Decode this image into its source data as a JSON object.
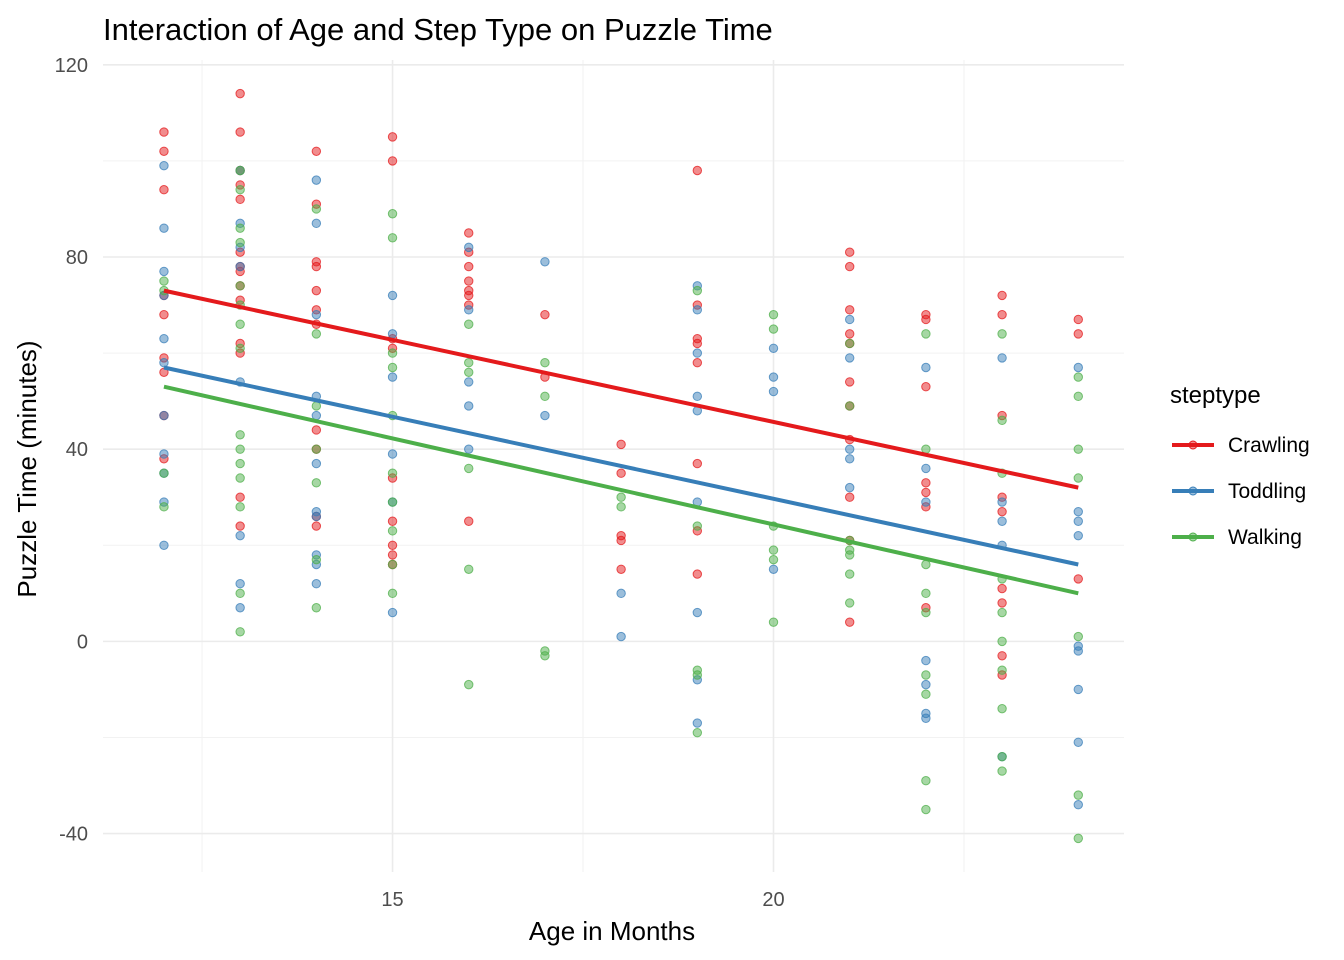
{
  "chart_data": {
    "type": "scatter",
    "title": "Interaction of Age and Step Type on Puzzle Time",
    "xlabel": "Age in Months",
    "ylabel": "Puzzle Time (minutes)",
    "xlim": [
      11.2,
      24.6
    ],
    "ylim": [
      -48,
      121
    ],
    "x_ticks": [
      15,
      20
    ],
    "x_tick_labels": [
      "15",
      "20"
    ],
    "y_ticks": [
      -40,
      0,
      40,
      80,
      120
    ],
    "y_tick_labels": [
      "-40",
      "0",
      "40",
      "80",
      "120"
    ],
    "grid": true,
    "legend": {
      "title": "steptype",
      "position": "right"
    },
    "series": [
      {
        "name": "Crawling",
        "color": "#e41a1c",
        "trend": {
          "x": [
            12,
            24
          ],
          "y": [
            73,
            32
          ]
        },
        "points": [
          [
            12,
            106
          ],
          [
            12,
            102
          ],
          [
            12,
            94
          ],
          [
            12,
            72
          ],
          [
            12,
            68
          ],
          [
            12,
            59
          ],
          [
            12,
            56
          ],
          [
            12,
            47
          ],
          [
            12,
            38
          ],
          [
            13,
            114
          ],
          [
            13,
            106
          ],
          [
            13,
            98
          ],
          [
            13,
            95
          ],
          [
            13,
            92
          ],
          [
            13,
            81
          ],
          [
            13,
            78
          ],
          [
            13,
            77
          ],
          [
            13,
            74
          ],
          [
            13,
            71
          ],
          [
            13,
            62
          ],
          [
            13,
            60
          ],
          [
            13,
            30
          ],
          [
            13,
            24
          ],
          [
            14,
            102
          ],
          [
            14,
            91
          ],
          [
            14,
            79
          ],
          [
            14,
            78
          ],
          [
            14,
            73
          ],
          [
            14,
            69
          ],
          [
            14,
            66
          ],
          [
            14,
            44
          ],
          [
            14,
            40
          ],
          [
            14,
            26
          ],
          [
            14,
            24
          ],
          [
            15,
            105
          ],
          [
            15,
            100
          ],
          [
            15,
            63
          ],
          [
            15,
            61
          ],
          [
            15,
            34
          ],
          [
            15,
            25
          ],
          [
            15,
            20
          ],
          [
            15,
            18
          ],
          [
            15,
            16
          ],
          [
            16,
            85
          ],
          [
            16,
            81
          ],
          [
            16,
            78
          ],
          [
            16,
            75
          ],
          [
            16,
            73
          ],
          [
            16,
            72
          ],
          [
            16,
            70
          ],
          [
            16,
            25
          ],
          [
            17,
            68
          ],
          [
            17,
            55
          ],
          [
            18,
            41
          ],
          [
            18,
            35
          ],
          [
            18,
            22
          ],
          [
            18,
            21
          ],
          [
            18,
            15
          ],
          [
            19,
            98
          ],
          [
            19,
            70
          ],
          [
            19,
            63
          ],
          [
            19,
            62
          ],
          [
            19,
            58
          ],
          [
            19,
            37
          ],
          [
            19,
            23
          ],
          [
            19,
            14
          ],
          [
            21,
            81
          ],
          [
            21,
            78
          ],
          [
            21,
            69
          ],
          [
            21,
            64
          ],
          [
            21,
            62
          ],
          [
            21,
            54
          ],
          [
            21,
            49
          ],
          [
            21,
            42
          ],
          [
            21,
            30
          ],
          [
            21,
            21
          ],
          [
            21,
            4
          ],
          [
            22,
            68
          ],
          [
            22,
            67
          ],
          [
            22,
            53
          ],
          [
            22,
            33
          ],
          [
            22,
            31
          ],
          [
            22,
            28
          ],
          [
            22,
            7
          ],
          [
            23,
            72
          ],
          [
            23,
            68
          ],
          [
            23,
            47
          ],
          [
            23,
            30
          ],
          [
            23,
            27
          ],
          [
            23,
            11
          ],
          [
            23,
            8
          ],
          [
            23,
            -3
          ],
          [
            23,
            -7
          ],
          [
            24,
            67
          ],
          [
            24,
            64
          ],
          [
            24,
            13
          ]
        ]
      },
      {
        "name": "Toddling",
        "color": "#377eb8",
        "trend": {
          "x": [
            12,
            24
          ],
          "y": [
            57,
            16
          ]
        },
        "points": [
          [
            12,
            99
          ],
          [
            12,
            86
          ],
          [
            12,
            77
          ],
          [
            12,
            72
          ],
          [
            12,
            63
          ],
          [
            12,
            58
          ],
          [
            12,
            47
          ],
          [
            12,
            39
          ],
          [
            12,
            35
          ],
          [
            12,
            29
          ],
          [
            12,
            20
          ],
          [
            13,
            98
          ],
          [
            13,
            87
          ],
          [
            13,
            82
          ],
          [
            13,
            78
          ],
          [
            13,
            54
          ],
          [
            13,
            22
          ],
          [
            13,
            12
          ],
          [
            13,
            7
          ],
          [
            14,
            96
          ],
          [
            14,
            87
          ],
          [
            14,
            68
          ],
          [
            14,
            51
          ],
          [
            14,
            47
          ],
          [
            14,
            37
          ],
          [
            14,
            27
          ],
          [
            14,
            26
          ],
          [
            14,
            18
          ],
          [
            14,
            16
          ],
          [
            14,
            12
          ],
          [
            15,
            72
          ],
          [
            15,
            64
          ],
          [
            15,
            55
          ],
          [
            15,
            39
          ],
          [
            15,
            29
          ],
          [
            15,
            6
          ],
          [
            16,
            82
          ],
          [
            16,
            69
          ],
          [
            16,
            54
          ],
          [
            16,
            49
          ],
          [
            16,
            40
          ],
          [
            17,
            79
          ],
          [
            17,
            47
          ],
          [
            18,
            10
          ],
          [
            18,
            1
          ],
          [
            19,
            74
          ],
          [
            19,
            69
          ],
          [
            19,
            60
          ],
          [
            19,
            51
          ],
          [
            19,
            48
          ],
          [
            19,
            29
          ],
          [
            19,
            6
          ],
          [
            19,
            -8
          ],
          [
            19,
            -17
          ],
          [
            20,
            61
          ],
          [
            20,
            55
          ],
          [
            20,
            52
          ],
          [
            20,
            15
          ],
          [
            21,
            67
          ],
          [
            21,
            59
          ],
          [
            21,
            40
          ],
          [
            21,
            38
          ],
          [
            21,
            32
          ],
          [
            22,
            57
          ],
          [
            22,
            36
          ],
          [
            22,
            29
          ],
          [
            22,
            -4
          ],
          [
            22,
            -9
          ],
          [
            22,
            -15
          ],
          [
            22,
            -16
          ],
          [
            23,
            59
          ],
          [
            23,
            29
          ],
          [
            23,
            25
          ],
          [
            23,
            20
          ],
          [
            23,
            -24
          ],
          [
            24,
            57
          ],
          [
            24,
            27
          ],
          [
            24,
            25
          ],
          [
            24,
            22
          ],
          [
            24,
            -1
          ],
          [
            24,
            -2
          ],
          [
            24,
            -10
          ],
          [
            24,
            -21
          ],
          [
            24,
            -34
          ]
        ]
      },
      {
        "name": "Walking",
        "color": "#4daf4a",
        "trend": {
          "x": [
            12,
            24
          ],
          "y": [
            53,
            10
          ]
        },
        "points": [
          [
            12,
            75
          ],
          [
            12,
            73
          ],
          [
            12,
            35
          ],
          [
            12,
            28
          ],
          [
            13,
            98
          ],
          [
            13,
            94
          ],
          [
            13,
            86
          ],
          [
            13,
            83
          ],
          [
            13,
            74
          ],
          [
            13,
            70
          ],
          [
            13,
            66
          ],
          [
            13,
            61
          ],
          [
            13,
            43
          ],
          [
            13,
            40
          ],
          [
            13,
            37
          ],
          [
            13,
            34
          ],
          [
            13,
            28
          ],
          [
            13,
            10
          ],
          [
            13,
            2
          ],
          [
            14,
            90
          ],
          [
            14,
            64
          ],
          [
            14,
            49
          ],
          [
            14,
            40
          ],
          [
            14,
            33
          ],
          [
            14,
            17
          ],
          [
            14,
            7
          ],
          [
            15,
            89
          ],
          [
            15,
            84
          ],
          [
            15,
            60
          ],
          [
            15,
            57
          ],
          [
            15,
            47
          ],
          [
            15,
            35
          ],
          [
            15,
            29
          ],
          [
            15,
            23
          ],
          [
            15,
            16
          ],
          [
            15,
            10
          ],
          [
            16,
            66
          ],
          [
            16,
            58
          ],
          [
            16,
            56
          ],
          [
            16,
            36
          ],
          [
            16,
            15
          ],
          [
            16,
            -9
          ],
          [
            17,
            58
          ],
          [
            17,
            51
          ],
          [
            17,
            -2
          ],
          [
            17,
            -3
          ],
          [
            18,
            30
          ],
          [
            18,
            28
          ],
          [
            19,
            73
          ],
          [
            19,
            24
          ],
          [
            19,
            -6
          ],
          [
            19,
            -7
          ],
          [
            19,
            -19
          ],
          [
            20,
            68
          ],
          [
            20,
            65
          ],
          [
            20,
            24
          ],
          [
            20,
            19
          ],
          [
            20,
            17
          ],
          [
            20,
            4
          ],
          [
            21,
            62
          ],
          [
            21,
            49
          ],
          [
            21,
            21
          ],
          [
            21,
            19
          ],
          [
            21,
            18
          ],
          [
            21,
            14
          ],
          [
            21,
            8
          ],
          [
            22,
            64
          ],
          [
            22,
            40
          ],
          [
            22,
            16
          ],
          [
            22,
            10
          ],
          [
            22,
            6
          ],
          [
            22,
            -7
          ],
          [
            22,
            -11
          ],
          [
            22,
            -29
          ],
          [
            22,
            -35
          ],
          [
            23,
            64
          ],
          [
            23,
            46
          ],
          [
            23,
            35
          ],
          [
            23,
            13
          ],
          [
            23,
            6
          ],
          [
            23,
            0
          ],
          [
            23,
            -6
          ],
          [
            23,
            -14
          ],
          [
            23,
            -24
          ],
          [
            23,
            -27
          ],
          [
            24,
            55
          ],
          [
            24,
            51
          ],
          [
            24,
            40
          ],
          [
            24,
            34
          ],
          [
            24,
            1
          ],
          [
            24,
            -32
          ],
          [
            24,
            -41
          ]
        ]
      }
    ]
  }
}
